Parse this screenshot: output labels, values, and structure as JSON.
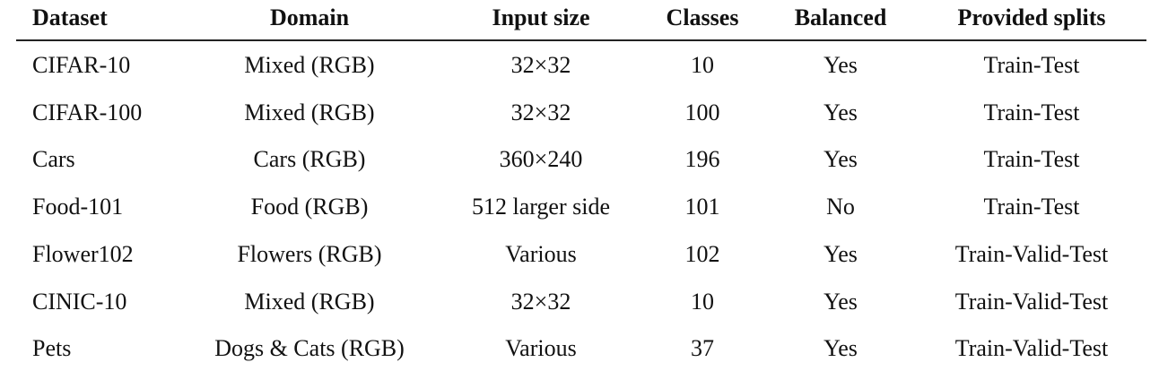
{
  "table": {
    "header": [
      "Dataset",
      "Domain",
      "Input size",
      "Classes",
      "Balanced",
      "Provided splits"
    ],
    "rows": [
      [
        "CIFAR-10",
        "Mixed (RGB)",
        "32×32",
        10,
        "Yes",
        "Train-Test"
      ],
      [
        "CIFAR-100",
        "Mixed (RGB)",
        "32×32",
        100,
        "Yes",
        "Train-Test"
      ],
      [
        "Cars",
        "Cars (RGB)",
        "360×240",
        196,
        "Yes",
        "Train-Test"
      ],
      [
        "Food-101",
        "Food (RGB)",
        "512 larger side",
        101,
        "No",
        "Train-Test"
      ],
      [
        "Flower102",
        "Flowers (RGB)",
        "Various",
        102,
        "Yes",
        "Train-Valid-Test"
      ],
      [
        "CINIC-10",
        "Mixed (RGB)",
        "32×32",
        10,
        "Yes",
        "Train-Valid-Test"
      ],
      [
        "Pets",
        "Dogs & Cats (RGB)",
        "Various",
        37,
        "Yes",
        "Train-Valid-Test"
      ]
    ]
  }
}
